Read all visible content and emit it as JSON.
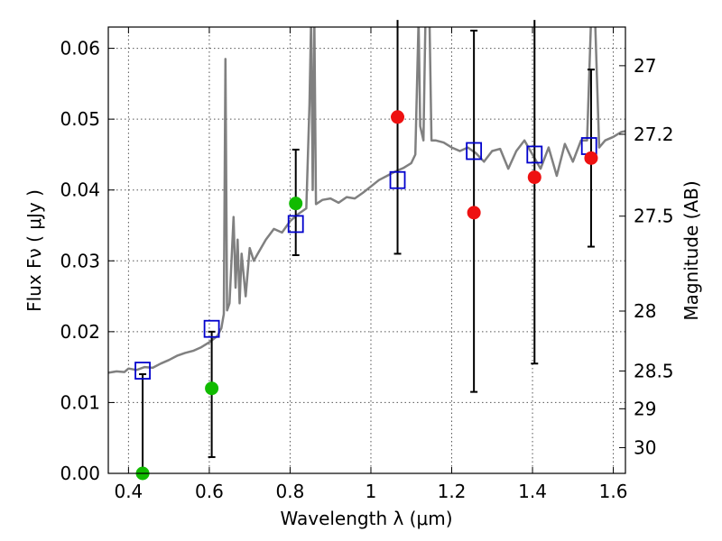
{
  "chart_data": {
    "type": "scatter",
    "xlabel": "Wavelength  λ (μm)",
    "ylabel": "Flux  Fν  ( μJy )",
    "y2label": "Magnitude (AB)",
    "xlim": [
      0.35,
      1.63
    ],
    "ylim": [
      0,
      0.063
    ],
    "grid": true,
    "x_ticks": [
      0.4,
      0.6,
      0.8,
      1.0,
      1.2,
      1.4,
      1.6
    ],
    "x_tick_labels": [
      "0.4",
      "0.6",
      "0.8",
      "1",
      "1.2",
      "1.4",
      "1.6"
    ],
    "y_ticks": [
      0,
      0.01,
      0.02,
      0.03,
      0.04,
      0.05,
      0.06
    ],
    "y_tick_labels": [
      "0.00",
      "0.01",
      "0.02",
      "0.03",
      "0.04",
      "0.05",
      "0.06"
    ],
    "y2_ticks": [
      {
        "mag": 27,
        "label": "27"
      },
      {
        "mag": 27.2,
        "label": "27.2"
      },
      {
        "mag": 27.5,
        "label": "27.5"
      },
      {
        "mag": 28,
        "label": "28"
      },
      {
        "mag": 28.5,
        "label": "28.5"
      },
      {
        "mag": 29,
        "label": "29"
      },
      {
        "mag": 30,
        "label": "30"
      }
    ],
    "colors": {
      "model": "#808080",
      "model_photometry": "#0000cc",
      "detection": "#11bb00",
      "non_detection": "#ee1111",
      "errorbar": "#000000",
      "grid": "#555555"
    },
    "model_spectrum": [
      [
        0.35,
        0.0142
      ],
      [
        0.37,
        0.0144
      ],
      [
        0.39,
        0.0143
      ],
      [
        0.4,
        0.0148
      ],
      [
        0.42,
        0.0146
      ],
      [
        0.44,
        0.015
      ],
      [
        0.46,
        0.0149
      ],
      [
        0.48,
        0.0155
      ],
      [
        0.5,
        0.016
      ],
      [
        0.52,
        0.0166
      ],
      [
        0.54,
        0.017
      ],
      [
        0.56,
        0.0173
      ],
      [
        0.58,
        0.0178
      ],
      [
        0.6,
        0.0185
      ],
      [
        0.62,
        0.0194
      ],
      [
        0.63,
        0.0205
      ],
      [
        0.636,
        0.0225
      ],
      [
        0.64,
        0.0585
      ],
      [
        0.644,
        0.023
      ],
      [
        0.65,
        0.024
      ],
      [
        0.66,
        0.0362
      ],
      [
        0.665,
        0.0262
      ],
      [
        0.67,
        0.033
      ],
      [
        0.675,
        0.024
      ],
      [
        0.68,
        0.031
      ],
      [
        0.69,
        0.025
      ],
      [
        0.7,
        0.0318
      ],
      [
        0.71,
        0.03
      ],
      [
        0.72,
        0.031
      ],
      [
        0.74,
        0.033
      ],
      [
        0.76,
        0.0345
      ],
      [
        0.78,
        0.034
      ],
      [
        0.8,
        0.0356
      ],
      [
        0.82,
        0.0366
      ],
      [
        0.84,
        0.0374
      ],
      [
        0.848,
        0.052
      ],
      [
        0.852,
        0.064
      ],
      [
        0.856,
        0.04
      ],
      [
        0.86,
        0.064
      ],
      [
        0.864,
        0.038
      ],
      [
        0.88,
        0.0386
      ],
      [
        0.9,
        0.0388
      ],
      [
        0.92,
        0.0382
      ],
      [
        0.94,
        0.039
      ],
      [
        0.96,
        0.0388
      ],
      [
        0.98,
        0.0396
      ],
      [
        1.0,
        0.0405
      ],
      [
        1.02,
        0.0414
      ],
      [
        1.04,
        0.042
      ],
      [
        1.06,
        0.0426
      ],
      [
        1.08,
        0.0431
      ],
      [
        1.1,
        0.0438
      ],
      [
        1.11,
        0.045
      ],
      [
        1.118,
        0.064
      ],
      [
        1.122,
        0.049
      ],
      [
        1.13,
        0.047
      ],
      [
        1.135,
        0.064
      ],
      [
        1.145,
        0.064
      ],
      [
        1.15,
        0.047
      ],
      [
        1.16,
        0.047
      ],
      [
        1.18,
        0.0467
      ],
      [
        1.2,
        0.046
      ],
      [
        1.22,
        0.0455
      ],
      [
        1.24,
        0.046
      ],
      [
        1.26,
        0.0452
      ],
      [
        1.28,
        0.044
      ],
      [
        1.3,
        0.0455
      ],
      [
        1.32,
        0.0458
      ],
      [
        1.34,
        0.043
      ],
      [
        1.36,
        0.0455
      ],
      [
        1.38,
        0.047
      ],
      [
        1.4,
        0.045
      ],
      [
        1.42,
        0.043
      ],
      [
        1.44,
        0.046
      ],
      [
        1.46,
        0.042
      ],
      [
        1.48,
        0.0465
      ],
      [
        1.5,
        0.044
      ],
      [
        1.52,
        0.047
      ],
      [
        1.535,
        0.047
      ],
      [
        1.545,
        0.064
      ],
      [
        1.555,
        0.064
      ],
      [
        1.565,
        0.046
      ],
      [
        1.58,
        0.047
      ],
      [
        1.6,
        0.0475
      ],
      [
        1.62,
        0.0482
      ],
      [
        1.63,
        0.0483
      ]
    ],
    "model_photometry": [
      {
        "x": 0.435,
        "y": 0.0145
      },
      {
        "x": 0.606,
        "y": 0.0204
      },
      {
        "x": 0.814,
        "y": 0.0352
      },
      {
        "x": 1.066,
        "y": 0.0414
      },
      {
        "x": 1.255,
        "y": 0.0455
      },
      {
        "x": 1.405,
        "y": 0.045
      },
      {
        "x": 1.54,
        "y": 0.0462
      }
    ],
    "observations": [
      {
        "x": 0.435,
        "y": 0.0,
        "lo": 0.0,
        "hi": 0.014,
        "type": "detection"
      },
      {
        "x": 0.606,
        "y": 0.012,
        "lo": 0.0023,
        "hi": 0.02,
        "type": "detection"
      },
      {
        "x": 0.814,
        "y": 0.0381,
        "lo": 0.0308,
        "hi": 0.0457,
        "type": "detection"
      },
      {
        "x": 1.066,
        "y": 0.0503,
        "lo": 0.031,
        "hi": 0.064,
        "type": "non_detection"
      },
      {
        "x": 1.255,
        "y": 0.0368,
        "lo": 0.0115,
        "hi": 0.0625,
        "type": "non_detection"
      },
      {
        "x": 1.405,
        "y": 0.0418,
        "lo": 0.0155,
        "hi": 0.064,
        "type": "non_detection"
      },
      {
        "x": 1.545,
        "y": 0.0445,
        "lo": 0.032,
        "hi": 0.057,
        "type": "non_detection"
      }
    ]
  }
}
